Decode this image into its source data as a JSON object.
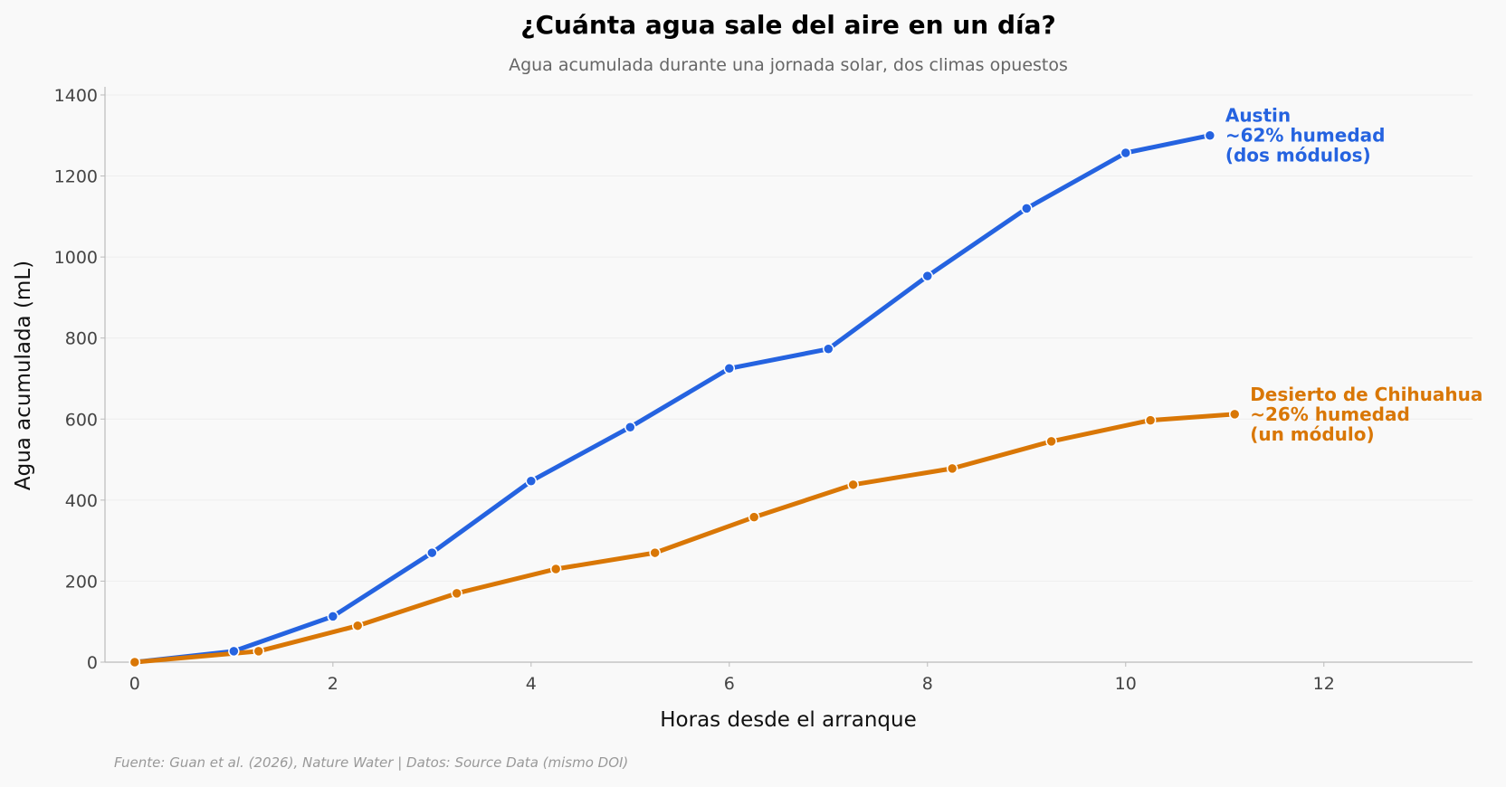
{
  "colors": {
    "background": "#f9f9f9",
    "austin": "#2563e0",
    "chihuahua": "#d97706",
    "grid": "#eeeeee",
    "axis": "#bbbbbb"
  },
  "chart_data": {
    "type": "line",
    "title": "¿Cuánta agua sale del aire en un día?",
    "subtitle": "Agua acumulada durante una jornada solar, dos climas opuestos",
    "xlabel": "Horas desde el arranque",
    "ylabel": "Agua acumulada (mL)",
    "xlim": [
      -0.3,
      13.5
    ],
    "ylim": [
      0,
      1420
    ],
    "xticks": [
      0,
      2,
      4,
      6,
      8,
      10,
      12
    ],
    "yticks": [
      0,
      200,
      400,
      600,
      800,
      1000,
      1200,
      1400
    ],
    "grid": "y",
    "legend": "inline labels at line ends",
    "series": [
      {
        "name": "Austin",
        "label_lines": [
          "Austin",
          "~62% humedad",
          "(dos módulos)"
        ],
        "color": "#2563e0",
        "x": [
          0,
          1,
          2,
          3,
          4,
          5,
          6,
          7,
          8,
          9,
          10,
          10.85
        ],
        "y": [
          0,
          27,
          113,
          270,
          447,
          580,
          725,
          773,
          953,
          1120,
          1257,
          1300
        ]
      },
      {
        "name": "Desierto de Chihuahua",
        "label_lines": [
          "Desierto de Chihuahua",
          "~26% humedad",
          "(un módulo)"
        ],
        "color": "#d97706",
        "x": [
          0,
          1.25,
          2.25,
          3.25,
          4.25,
          5.25,
          6.25,
          7.25,
          8.25,
          9.25,
          10.25,
          11.1
        ],
        "y": [
          0,
          27,
          90,
          170,
          230,
          270,
          358,
          438,
          478,
          545,
          597,
          612
        ]
      }
    ],
    "source": "Fuente: Guan et al. (2026), Nature Water | Datos: Source Data (mismo DOI)"
  }
}
